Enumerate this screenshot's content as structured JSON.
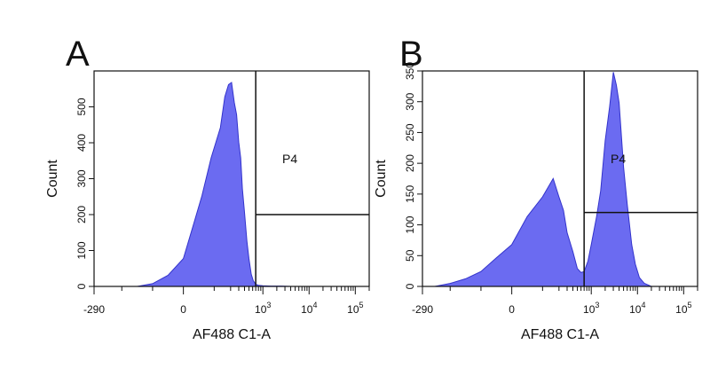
{
  "chart_data": [
    {
      "type": "area",
      "panel": "A",
      "gate_label": "P4",
      "xlabel": "AF488 C1-A",
      "ylabel": "Count",
      "xscale": "biexponential",
      "ylim": [
        0,
        600
      ],
      "yticks": [
        0,
        100,
        200,
        300,
        400,
        500
      ],
      "xticks": [
        {
          "value": -290,
          "label": "-290"
        },
        {
          "value": 0,
          "label": "0"
        },
        {
          "value": 1000,
          "label": "10",
          "exp": "3"
        },
        {
          "value": 10000,
          "label": "10",
          "exp": "4"
        },
        {
          "value": 100000,
          "label": "10",
          "exp": "5"
        }
      ],
      "gate": {
        "x_threshold": 700,
        "y_threshold": 200
      },
      "fill_color": "#5b5bf0",
      "stroke_color": "#3333cc",
      "series": [
        {
          "x": [
            -150,
            -100,
            -50,
            0,
            30,
            60,
            90,
            120,
            150,
            180,
            210,
            240,
            270,
            300,
            330,
            360,
            400,
            450,
            500,
            560,
            620,
            700,
            800,
            1000,
            1500,
            2500,
            4000,
            7000
          ],
          "values": [
            0,
            8,
            30,
            80,
            160,
            260,
            350,
            450,
            520,
            570,
            560,
            520,
            470,
            410,
            350,
            280,
            200,
            130,
            75,
            35,
            15,
            6,
            3,
            2,
            1,
            1,
            0,
            0
          ]
        }
      ]
    },
    {
      "type": "area",
      "panel": "B",
      "gate_label": "P4",
      "xlabel": "AF488 C1-A",
      "ylabel": "Count",
      "xscale": "biexponential",
      "ylim": [
        0,
        350
      ],
      "yticks": [
        0,
        50,
        100,
        150,
        200,
        250,
        300,
        350
      ],
      "xticks": [
        {
          "value": -290,
          "label": "-290"
        },
        {
          "value": 0,
          "label": "0"
        },
        {
          "value": 1000,
          "label": "10",
          "exp": "3"
        },
        {
          "value": 10000,
          "label": "10",
          "exp": "4"
        },
        {
          "value": 100000,
          "label": "10",
          "exp": "5"
        }
      ],
      "gate": {
        "x_threshold": 700,
        "y_threshold": 120
      },
      "fill_color": "#5b5bf0",
      "stroke_color": "#3333cc",
      "series": [
        {
          "x": [
            -250,
            -200,
            -150,
            -100,
            -50,
            0,
            50,
            100,
            150,
            200,
            250,
            300,
            400,
            500,
            600,
            700,
            850,
            1000,
            1300,
            1600,
            2000,
            2500,
            3000,
            3500,
            4000,
            5000,
            6000,
            7500,
            9000,
            11000,
            14000,
            20000
          ],
          "values": [
            0,
            5,
            12,
            25,
            45,
            70,
            110,
            150,
            170,
            150,
            120,
            90,
            55,
            30,
            22,
            25,
            40,
            70,
            110,
            160,
            230,
            300,
            340,
            335,
            290,
            200,
            130,
            70,
            35,
            15,
            5,
            0
          ]
        }
      ]
    }
  ]
}
